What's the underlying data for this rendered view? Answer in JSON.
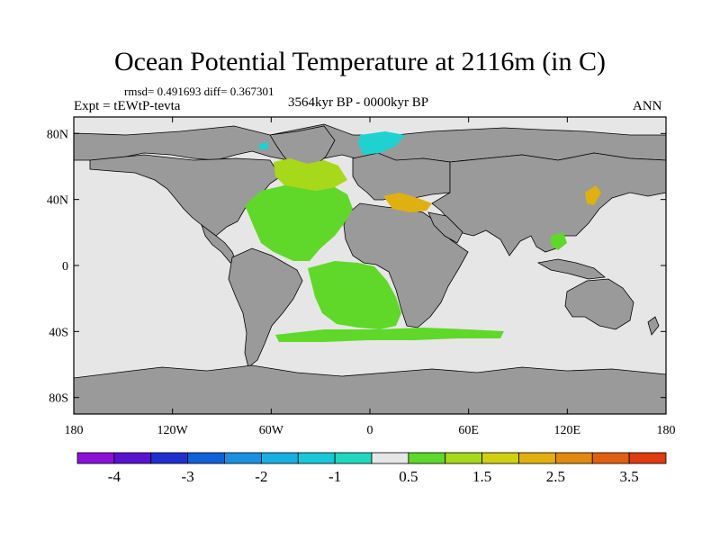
{
  "title": "Ocean Potential Temperature at 2116m (in C)",
  "stats_label": "rmsd= 0.491693 diff= 0.367301",
  "experiment_label": "Expt = tEWtP-tevta",
  "period_label": "3564kyr BP - 0000kyr BP",
  "season_label": "ANN",
  "map": {
    "projection": "cylindrical-equidistant",
    "lon_range": [
      -180,
      180
    ],
    "lat_range": [
      -90,
      90
    ],
    "x_ticks": [
      {
        "value": -180,
        "label": "180"
      },
      {
        "value": -120,
        "label": "120W"
      },
      {
        "value": -60,
        "label": "60W"
      },
      {
        "value": 0,
        "label": "0"
      },
      {
        "value": 60,
        "label": "60E"
      },
      {
        "value": 120,
        "label": "120E"
      },
      {
        "value": 180,
        "label": "180"
      }
    ],
    "y_ticks": [
      {
        "value": 80,
        "label": "80N"
      },
      {
        "value": 40,
        "label": "40N"
      },
      {
        "value": 0,
        "label": "0"
      },
      {
        "value": -40,
        "label": "40S"
      },
      {
        "value": -80,
        "label": "80S"
      }
    ],
    "colors": {
      "land": "#9a9a9a",
      "ocean_near_zero": "#e6e6e6",
      "coast": "#000000"
    },
    "anomaly_regions": [
      {
        "name": "nordic-seas",
        "value": -1.0,
        "color": "#1fd1d1"
      },
      {
        "name": "north-atlantic-subpolar",
        "value": 1.2,
        "color": "#a8d81a"
      },
      {
        "name": "north-atlantic",
        "value": 0.8,
        "color": "#5fd82a"
      },
      {
        "name": "south-atlantic",
        "value": 0.8,
        "color": "#5fd82a"
      },
      {
        "name": "southern-ocean-band",
        "value": 0.8,
        "color": "#5fd82a"
      },
      {
        "name": "mediterranean",
        "value": 2.2,
        "color": "#e0b010"
      },
      {
        "name": "sea-of-japan",
        "value": 2.2,
        "color": "#e0b010"
      },
      {
        "name": "south-china-sea",
        "value": 0.8,
        "color": "#5fd82a"
      }
    ]
  },
  "colorbar": {
    "colors": [
      "#8a12d8",
      "#5a12d0",
      "#2030d0",
      "#1060d8",
      "#1a90e0",
      "#18b0e0",
      "#18c8d8",
      "#20d8c0",
      "#e6e6e6",
      "#5fd82a",
      "#a8d81a",
      "#d0d010",
      "#e0b010",
      "#e08a10",
      "#e06010",
      "#e03a10"
    ],
    "labels": [
      {
        "boundary": 1,
        "text": "-4"
      },
      {
        "boundary": 3,
        "text": "-3"
      },
      {
        "boundary": 5,
        "text": "-2"
      },
      {
        "boundary": 7,
        "text": "-1"
      },
      {
        "boundary": 9,
        "text": "0.5"
      },
      {
        "boundary": 11,
        "text": "1.5"
      },
      {
        "boundary": 13,
        "text": "2.5"
      },
      {
        "boundary": 15,
        "text": "3.5"
      }
    ]
  }
}
